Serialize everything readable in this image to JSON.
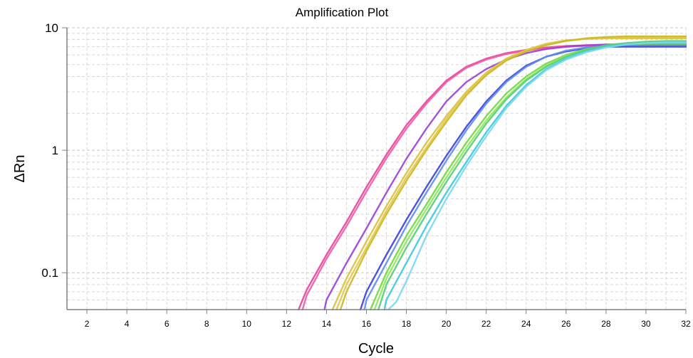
{
  "chart_data": {
    "type": "line",
    "title": "Amplification Plot",
    "xlabel": "Cycle",
    "ylabel": "ΔRn",
    "xlim": [
      1,
      32
    ],
    "ylim": [
      0.05,
      10
    ],
    "y_scale": "log",
    "grid": true,
    "x_ticks": [
      2,
      4,
      6,
      8,
      10,
      12,
      14,
      16,
      18,
      20,
      22,
      24,
      26,
      28,
      30,
      32
    ],
    "y_ticks": [
      {
        "value": 0.1,
        "label": "0.1"
      },
      {
        "value": 1,
        "label": "1"
      },
      {
        "value": 10,
        "label": "10"
      }
    ],
    "series": [
      {
        "color": "#e8409a",
        "x": [
          12.6,
          13,
          14,
          15,
          16,
          17,
          18,
          19,
          20,
          21,
          22,
          23,
          24,
          25,
          26,
          27,
          28,
          29,
          30,
          31,
          32
        ],
        "values": [
          0.05,
          0.072,
          0.14,
          0.26,
          0.5,
          0.92,
          1.6,
          2.5,
          3.7,
          4.8,
          5.6,
          6.2,
          6.6,
          6.9,
          7.1,
          7.2,
          7.2,
          7.2,
          7.2,
          7.2,
          7.2
        ]
      },
      {
        "color": "#f05aa8",
        "x": [
          12.8,
          13,
          14,
          15,
          16,
          17,
          18,
          19,
          20,
          21,
          22,
          23,
          24,
          25,
          26,
          27,
          28,
          29,
          30,
          31,
          32
        ],
        "values": [
          0.05,
          0.065,
          0.13,
          0.24,
          0.46,
          0.86,
          1.5,
          2.4,
          3.6,
          4.7,
          5.5,
          6.1,
          6.5,
          6.8,
          7.0,
          7.1,
          7.2,
          7.2,
          7.2,
          7.2,
          7.2
        ]
      },
      {
        "color": "#9a3fd6",
        "x": [
          13.9,
          14,
          15,
          16,
          17,
          18,
          19,
          20,
          21,
          22,
          23,
          24,
          25,
          26,
          27,
          28,
          29,
          30,
          31,
          32
        ],
        "values": [
          0.05,
          0.06,
          0.12,
          0.23,
          0.45,
          0.85,
          1.5,
          2.5,
          3.6,
          4.6,
          5.5,
          6.2,
          6.7,
          7.0,
          7.2,
          7.3,
          7.3,
          7.3,
          7.3,
          7.3
        ]
      },
      {
        "color": "#d9c23a",
        "x": [
          14.3,
          15,
          16,
          17,
          18,
          19,
          20,
          21,
          22,
          23,
          24,
          25,
          26,
          27,
          28,
          29,
          30,
          31,
          32
        ],
        "values": [
          0.05,
          0.09,
          0.18,
          0.35,
          0.65,
          1.15,
          1.9,
          3.0,
          4.3,
          5.6,
          6.6,
          7.4,
          7.9,
          8.1,
          8.2,
          8.2,
          8.2,
          8.2,
          8.2
        ]
      },
      {
        "color": "#e3c850",
        "x": [
          14.5,
          15,
          16,
          17,
          18,
          19,
          20,
          21,
          22,
          23,
          24,
          25,
          26,
          27,
          28,
          29,
          30,
          31,
          32
        ],
        "values": [
          0.05,
          0.08,
          0.16,
          0.32,
          0.6,
          1.05,
          1.8,
          2.9,
          4.2,
          5.5,
          6.5,
          7.3,
          7.8,
          8.1,
          8.3,
          8.4,
          8.4,
          8.4,
          8.4
        ]
      },
      {
        "color": "#c9b820",
        "x": [
          14.7,
          15,
          16,
          17,
          18,
          19,
          20,
          21,
          22,
          23,
          24,
          25,
          26,
          27,
          28,
          29,
          30,
          31,
          32
        ],
        "values": [
          0.05,
          0.07,
          0.15,
          0.3,
          0.56,
          1.0,
          1.7,
          2.8,
          4.1,
          5.4,
          6.4,
          7.2,
          7.8,
          8.2,
          8.4,
          8.5,
          8.5,
          8.5,
          8.5
        ]
      },
      {
        "color": "#3b3fe0",
        "x": [
          15.7,
          16,
          17,
          18,
          19,
          20,
          21,
          22,
          23,
          24,
          25,
          26,
          27,
          28,
          29,
          30,
          31,
          32
        ],
        "values": [
          0.05,
          0.07,
          0.14,
          0.27,
          0.5,
          0.9,
          1.55,
          2.5,
          3.7,
          4.9,
          5.8,
          6.4,
          6.8,
          7.0,
          7.0,
          7.0,
          7.0,
          7.0
        ]
      },
      {
        "color": "#5d8df0",
        "x": [
          15.9,
          16,
          17,
          18,
          19,
          20,
          21,
          22,
          23,
          24,
          25,
          26,
          27,
          28,
          29,
          30,
          31,
          32
        ],
        "values": [
          0.05,
          0.06,
          0.12,
          0.24,
          0.45,
          0.82,
          1.45,
          2.4,
          3.6,
          4.8,
          5.8,
          6.5,
          6.9,
          7.1,
          7.2,
          7.2,
          7.2,
          7.2
        ]
      },
      {
        "color": "#6fd93a",
        "x": [
          16.2,
          17,
          18,
          19,
          20,
          21,
          22,
          23,
          24,
          25,
          26,
          27,
          28,
          29,
          30,
          31,
          32
        ],
        "values": [
          0.05,
          0.1,
          0.2,
          0.36,
          0.66,
          1.15,
          1.9,
          2.9,
          4.0,
          5.1,
          6.0,
          6.7,
          7.1,
          7.3,
          7.4,
          7.4,
          7.4
        ]
      },
      {
        "color": "#8de85a",
        "x": [
          16.4,
          17,
          18,
          19,
          20,
          21,
          22,
          23,
          24,
          25,
          26,
          27,
          28,
          29,
          30,
          31,
          32
        ],
        "values": [
          0.05,
          0.09,
          0.18,
          0.33,
          0.6,
          1.05,
          1.75,
          2.7,
          3.8,
          4.9,
          5.9,
          6.6,
          7.1,
          7.4,
          7.6,
          7.6,
          7.6
        ]
      },
      {
        "color": "#54cc7a",
        "x": [
          16.6,
          17,
          18,
          19,
          20,
          21,
          22,
          23,
          24,
          25,
          26,
          27,
          28,
          29,
          30,
          31,
          32
        ],
        "values": [
          0.05,
          0.08,
          0.16,
          0.3,
          0.55,
          0.97,
          1.65,
          2.6,
          3.7,
          4.8,
          5.8,
          6.6,
          7.2,
          7.5,
          7.7,
          7.8,
          7.8
        ]
      },
      {
        "color": "#3cc9e0",
        "x": [
          16.9,
          17,
          18,
          19,
          20,
          21,
          22,
          23,
          24,
          25,
          26,
          27,
          28,
          29,
          30,
          31,
          32
        ],
        "values": [
          0.05,
          0.06,
          0.12,
          0.24,
          0.45,
          0.8,
          1.4,
          2.3,
          3.4,
          4.6,
          5.6,
          6.4,
          7.0,
          7.3,
          7.5,
          7.6,
          7.6
        ]
      },
      {
        "color": "#7ad8ee",
        "x": [
          17.1,
          17.5,
          18,
          19,
          20,
          21,
          22,
          23,
          24,
          25,
          26,
          27,
          28,
          29,
          30,
          31,
          32
        ],
        "values": [
          0.05,
          0.058,
          0.085,
          0.2,
          0.4,
          0.74,
          1.3,
          2.2,
          3.3,
          4.5,
          5.5,
          6.3,
          6.9,
          7.3,
          7.5,
          7.6,
          7.6
        ]
      }
    ]
  }
}
